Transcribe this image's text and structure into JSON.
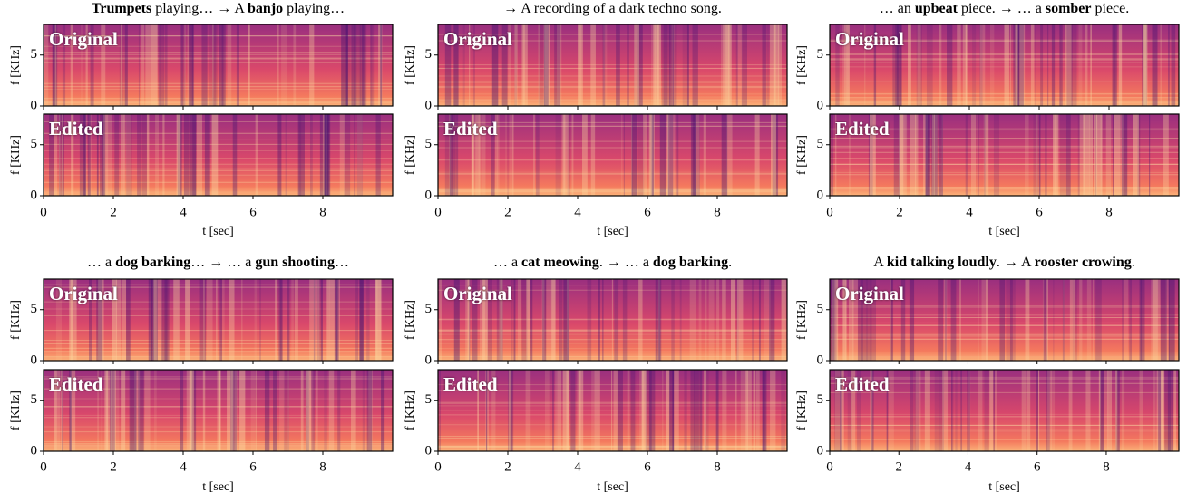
{
  "chart_data": [
    {
      "type": "spectrogram",
      "title": [
        {
          "text": "Trumpets",
          "bold": true
        },
        {
          "text": " playing… → A "
        },
        {
          "text": "banjo",
          "bold": true
        },
        {
          "text": " playing…"
        }
      ],
      "subplots": [
        {
          "label": "Original"
        },
        {
          "label": "Edited"
        }
      ],
      "xlabel": "t [sec]",
      "ylabel": "f [KHz]",
      "xlim": [
        0,
        10
      ],
      "ylim": [
        0,
        8
      ],
      "xticks": [
        0,
        2,
        4,
        6,
        8
      ],
      "yticks": [
        0,
        5
      ]
    },
    {
      "type": "spectrogram",
      "title": [
        {
          "text": "→ A recording of a dark techno song."
        }
      ],
      "subplots": [
        {
          "label": "Original"
        },
        {
          "label": "Edited"
        }
      ],
      "xlabel": "t [sec]",
      "ylabel": "f [KHz]",
      "xlim": [
        0,
        10
      ],
      "ylim": [
        0,
        8
      ],
      "xticks": [
        0,
        2,
        4,
        6,
        8
      ],
      "yticks": [
        0,
        5
      ]
    },
    {
      "type": "spectrogram",
      "title": [
        {
          "text": "… an "
        },
        {
          "text": "upbeat",
          "bold": true
        },
        {
          "text": " piece. → … a "
        },
        {
          "text": "somber",
          "bold": true
        },
        {
          "text": " piece."
        }
      ],
      "subplots": [
        {
          "label": "Original"
        },
        {
          "label": "Edited"
        }
      ],
      "xlabel": "t [sec]",
      "ylabel": "f [KHz]",
      "xlim": [
        0,
        10
      ],
      "ylim": [
        0,
        8
      ],
      "xticks": [
        0,
        2,
        4,
        6,
        8
      ],
      "yticks": [
        0,
        5
      ]
    },
    {
      "type": "spectrogram",
      "title": [
        {
          "text": "… a "
        },
        {
          "text": "dog barking",
          "bold": true
        },
        {
          "text": "… → … a "
        },
        {
          "text": "gun shooting",
          "bold": true
        },
        {
          "text": "…"
        }
      ],
      "subplots": [
        {
          "label": "Original"
        },
        {
          "label": "Edited"
        }
      ],
      "xlabel": "t [sec]",
      "ylabel": "f [KHz]",
      "xlim": [
        0,
        10
      ],
      "ylim": [
        0,
        8
      ],
      "xticks": [
        0,
        2,
        4,
        6,
        8
      ],
      "yticks": [
        0,
        5
      ]
    },
    {
      "type": "spectrogram",
      "title": [
        {
          "text": "… a "
        },
        {
          "text": "cat meowing",
          "bold": true
        },
        {
          "text": ". → … a "
        },
        {
          "text": "dog barking",
          "bold": true
        },
        {
          "text": "."
        }
      ],
      "subplots": [
        {
          "label": "Original"
        },
        {
          "label": "Edited"
        }
      ],
      "xlabel": "t [sec]",
      "ylabel": "f [KHz]",
      "xlim": [
        0,
        10
      ],
      "ylim": [
        0,
        8
      ],
      "xticks": [
        0,
        2,
        4,
        6,
        8
      ],
      "yticks": [
        0,
        5
      ]
    },
    {
      "type": "spectrogram",
      "title": [
        {
          "text": "A "
        },
        {
          "text": "kid talking loudly",
          "bold": true
        },
        {
          "text": ". → A "
        },
        {
          "text": "rooster crowing",
          "bold": true
        },
        {
          "text": "."
        }
      ],
      "subplots": [
        {
          "label": "Original"
        },
        {
          "label": "Edited"
        }
      ],
      "xlabel": "t [sec]",
      "ylabel": "f [KHz]",
      "xlim": [
        0,
        10.1
      ],
      "ylim": [
        0,
        8
      ],
      "xticks": [
        0,
        2,
        4,
        6,
        8
      ],
      "yticks": [
        0,
        5
      ]
    }
  ]
}
